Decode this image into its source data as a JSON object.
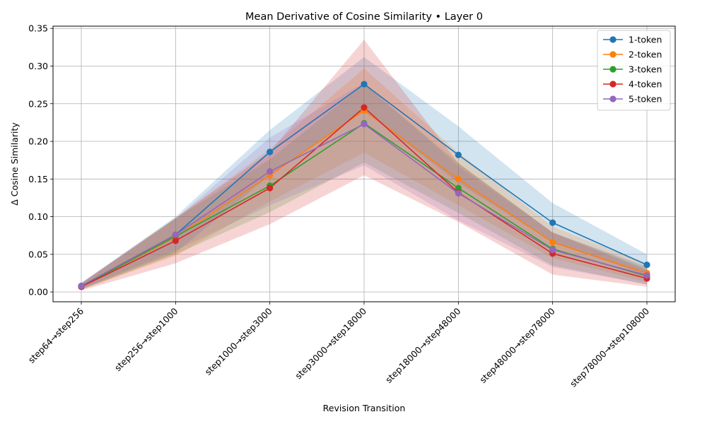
{
  "chart_data": {
    "type": "line",
    "title": "Mean Derivative of Cosine Similarity • Layer 0",
    "xlabel": "Revision Transition",
    "ylabel": "Δ Cosine Similarity",
    "categories": [
      "step64→step256",
      "step256→step1000",
      "step1000→step3000",
      "step3000→step18000",
      "step18000→step48000",
      "step48000→step78000",
      "step78000→step108000"
    ],
    "ylim": [
      -0.013,
      0.353
    ],
    "yticks": [
      0.0,
      0.05,
      0.1,
      0.15,
      0.2,
      0.25,
      0.3,
      0.35
    ],
    "ytick_labels": [
      "0.00",
      "0.05",
      "0.10",
      "0.15",
      "0.20",
      "0.25",
      "0.30",
      "0.35"
    ],
    "grid": true,
    "legend_position": "top-right",
    "series": [
      {
        "name": "1-token",
        "color": "#1f77b4",
        "values": [
          0.008,
          0.076,
          0.186,
          0.276,
          0.182,
          0.092,
          0.036
        ],
        "lower": [
          0.004,
          0.052,
          0.155,
          0.24,
          0.145,
          0.066,
          0.022
        ],
        "upper": [
          0.012,
          0.1,
          0.215,
          0.312,
          0.22,
          0.118,
          0.05
        ]
      },
      {
        "name": "2-token",
        "color": "#ff7f0e",
        "values": [
          0.007,
          0.073,
          0.155,
          0.241,
          0.15,
          0.066,
          0.025
        ],
        "lower": [
          0.003,
          0.048,
          0.12,
          0.185,
          0.115,
          0.045,
          0.013
        ],
        "upper": [
          0.011,
          0.098,
          0.19,
          0.297,
          0.185,
          0.087,
          0.037
        ]
      },
      {
        "name": "3-token",
        "color": "#2ca02c",
        "values": [
          0.007,
          0.074,
          0.141,
          0.224,
          0.138,
          0.057,
          0.021
        ],
        "lower": [
          0.003,
          0.05,
          0.106,
          0.172,
          0.105,
          0.035,
          0.01
        ],
        "upper": [
          0.011,
          0.098,
          0.176,
          0.276,
          0.171,
          0.079,
          0.032
        ]
      },
      {
        "name": "4-token",
        "color": "#d62728",
        "values": [
          0.007,
          0.068,
          0.138,
          0.245,
          0.132,
          0.051,
          0.018
        ],
        "lower": [
          0.002,
          0.038,
          0.09,
          0.155,
          0.093,
          0.023,
          0.007
        ],
        "upper": [
          0.012,
          0.098,
          0.186,
          0.335,
          0.171,
          0.079,
          0.029
        ]
      },
      {
        "name": "5-token",
        "color": "#9467bd",
        "values": [
          0.008,
          0.076,
          0.16,
          0.223,
          0.131,
          0.056,
          0.022
        ],
        "lower": [
          0.004,
          0.055,
          0.115,
          0.168,
          0.095,
          0.033,
          0.01
        ],
        "upper": [
          0.012,
          0.097,
          0.205,
          0.278,
          0.167,
          0.079,
          0.034
        ]
      }
    ]
  }
}
